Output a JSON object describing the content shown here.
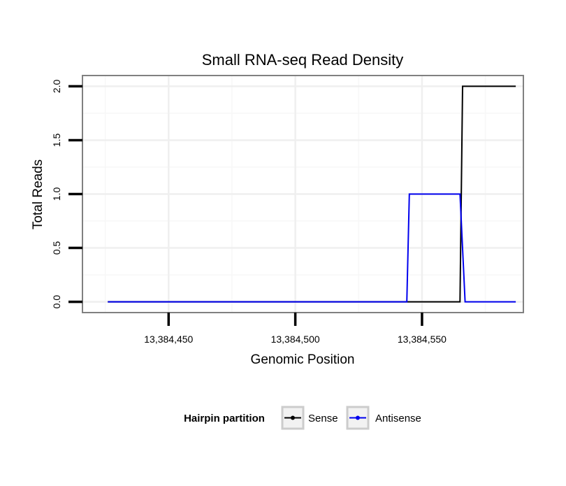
{
  "chart_data": {
    "type": "line",
    "title": "Small RNA-seq Read Density",
    "xlabel": "Genomic Position",
    "ylabel": "Total Reads",
    "xlim": [
      13384416,
      13384590
    ],
    "ylim": [
      -0.1,
      2.1
    ],
    "x_ticks": [
      13384450,
      13384500,
      13384550
    ],
    "x_tick_labels": [
      "13,384,450",
      "13,384,500",
      "13,384,550"
    ],
    "y_ticks": [
      0,
      0.5,
      1,
      1.5,
      2
    ],
    "y_tick_labels": [
      "0.0",
      "0.5",
      "1.0",
      "1.5",
      "2.0"
    ],
    "grid": true,
    "legend": {
      "title": "Hairpin partition",
      "position": "bottom"
    },
    "series": [
      {
        "name": "Sense",
        "color": "#000000",
        "x": [
          13384426,
          13384565,
          13384566,
          13384587
        ],
        "y": [
          0,
          0,
          2,
          2
        ]
      },
      {
        "name": "Antisense",
        "color": "#0000ee",
        "x": [
          13384426,
          13384544,
          13384545,
          13384565,
          13384567,
          13384587
        ],
        "y": [
          0,
          0,
          1,
          1,
          0,
          0
        ]
      }
    ]
  }
}
